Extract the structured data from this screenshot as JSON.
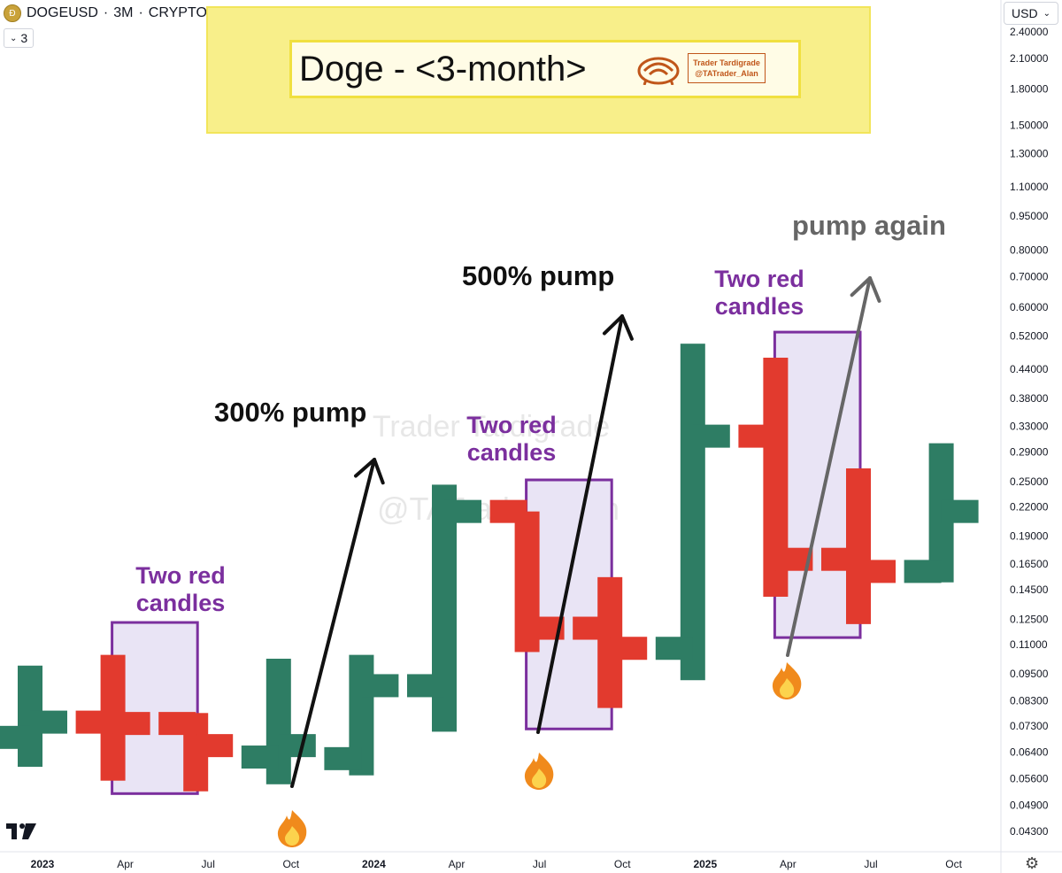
{
  "header": {
    "symbol": "DOGEUSD",
    "separator1": "·",
    "interval": "3M",
    "separator2": "·",
    "market": "CRYPTO",
    "interval_selector": "3"
  },
  "currency_selector": {
    "value": "USD"
  },
  "banner": {
    "title": "Doge - <3-month>",
    "logo_line1": "Trader Tardigrade",
    "logo_line2": "@TATrader_Alan"
  },
  "watermark": {
    "line1": "Trader Tardigrade",
    "line2": "@TATrader_Alan"
  },
  "colors": {
    "up": "#2e7d64",
    "down": "#e23a2e",
    "box_stroke": "#7b2f9e",
    "box_fill": "#e9e4f5",
    "label": "#7b2f9e",
    "banner": "#f8ef8a"
  },
  "chart_data": {
    "type": "candlestick",
    "scale": "log",
    "y_ticks": [
      "2.40000",
      "2.10000",
      "1.80000",
      "1.50000",
      "1.30000",
      "1.10000",
      "0.95000",
      "0.80000",
      "0.70000",
      "0.60000",
      "0.52000",
      "0.44000",
      "0.38000",
      "0.33000",
      "0.29000",
      "0.25000",
      "0.22000",
      "0.19000",
      "0.16500",
      "0.14500",
      "0.12500",
      "0.11000",
      "0.09500",
      "0.08300",
      "0.07300",
      "0.06400",
      "0.05600",
      "0.04900",
      "0.04300"
    ],
    "x_ticks": [
      "2023",
      "Apr",
      "Jul",
      "Oct",
      "2024",
      "Apr",
      "Jul",
      "Oct",
      "2025",
      "Apr",
      "Jul",
      "Oct"
    ],
    "x_bold": [
      "2023",
      "2024",
      "2025"
    ],
    "candles": [
      {
        "period": "2022 Q4",
        "open": 0.069,
        "high": 0.099,
        "low": 0.0595,
        "close": 0.0745
      },
      {
        "period": "2023 Q1",
        "open": 0.0745,
        "high": 0.1045,
        "low": 0.0555,
        "close": 0.074
      },
      {
        "period": "2023 Q2",
        "open": 0.074,
        "high": 0.078,
        "low": 0.0526,
        "close": 0.0662
      },
      {
        "period": "2023 Q3",
        "open": 0.0625,
        "high": 0.1025,
        "low": 0.0545,
        "close": 0.0662
      },
      {
        "period": "2023 Q4",
        "open": 0.062,
        "high": 0.1045,
        "low": 0.057,
        "close": 0.0895
      },
      {
        "period": "2024 Q1",
        "open": 0.0895,
        "high": 0.246,
        "low": 0.071,
        "close": 0.215
      },
      {
        "period": "2024 Q2",
        "open": 0.215,
        "high": 0.215,
        "low": 0.106,
        "close": 0.1195
      },
      {
        "period": "2024 Q3",
        "open": 0.1195,
        "high": 0.1545,
        "low": 0.08,
        "close": 0.108
      },
      {
        "period": "2024 Q4",
        "open": 0.108,
        "high": 0.5,
        "low": 0.092,
        "close": 0.314
      },
      {
        "period": "2025 Q1",
        "open": 0.314,
        "high": 0.466,
        "low": 0.14,
        "close": 0.169
      },
      {
        "period": "2025 Q2",
        "open": 0.169,
        "high": 0.267,
        "low": 0.122,
        "close": 0.159
      },
      {
        "period": "2025 Q3",
        "open": 0.159,
        "high": 0.303,
        "low": 0.1505,
        "close": 0.215
      }
    ],
    "annotations": [
      {
        "text": "300% pump",
        "color": "#111111"
      },
      {
        "text": "500% pump",
        "color": "#111111"
      },
      {
        "text": "pump again",
        "color": "#666666"
      },
      {
        "text": "Two red candles",
        "color": "#7b2f9e",
        "lines": [
          "Two red",
          "candles"
        ]
      },
      {
        "text": "Two red candles",
        "color": "#7b2f9e",
        "lines": [
          "Two red",
          "candles"
        ]
      },
      {
        "text": "Two red candles",
        "color": "#7b2f9e",
        "lines": [
          "Two red",
          "candles"
        ]
      }
    ]
  }
}
